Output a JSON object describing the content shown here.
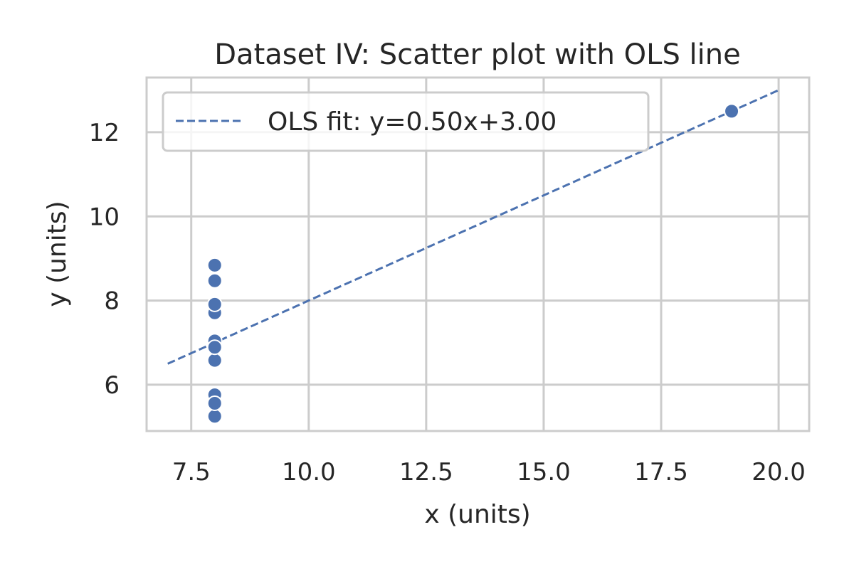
{
  "chart_data": {
    "type": "scatter",
    "title": "Dataset IV: Scatter plot with OLS line",
    "xlabel": "x (units)",
    "ylabel": "y (units)",
    "xlim": [
      6.55,
      20.65
    ],
    "ylim": [
      4.9,
      13.3
    ],
    "xticks": [
      7.5,
      10.0,
      12.5,
      15.0,
      17.5,
      20.0
    ],
    "xtick_labels": [
      "7.5",
      "10.0",
      "12.5",
      "15.0",
      "17.5",
      "20.0"
    ],
    "yticks": [
      6,
      8,
      10,
      12
    ],
    "ytick_labels": [
      "6",
      "8",
      "10",
      "12"
    ],
    "grid": true,
    "legend": {
      "placement": "top-left"
    },
    "series": [
      {
        "kind": "points",
        "color": "#4c72b0",
        "points": [
          {
            "x": 8,
            "y": 6.58
          },
          {
            "x": 8,
            "y": 5.76
          },
          {
            "x": 8,
            "y": 7.71
          },
          {
            "x": 8,
            "y": 8.84
          },
          {
            "x": 8,
            "y": 8.47
          },
          {
            "x": 8,
            "y": 7.04
          },
          {
            "x": 8,
            "y": 5.25
          },
          {
            "x": 19,
            "y": 12.5
          },
          {
            "x": 8,
            "y": 5.56
          },
          {
            "x": 8,
            "y": 7.91
          },
          {
            "x": 8,
            "y": 6.89
          }
        ]
      },
      {
        "kind": "line",
        "name": "OLS fit: y=0.50x+3.00",
        "color": "#4c72b0",
        "style": "dashed",
        "x": [
          7,
          20
        ],
        "y": [
          6.5,
          13.0
        ]
      }
    ]
  }
}
